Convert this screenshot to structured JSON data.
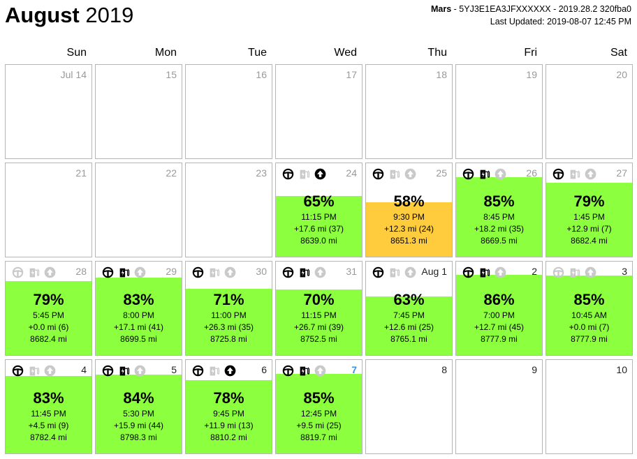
{
  "header": {
    "month": "August",
    "year": "2019",
    "car_name": "Mars",
    "car_info": " - 5YJ3E1EA3JFXXXXXX - 2019.28.2 320fba0",
    "last_updated": "Last Updated: 2019-08-07 12:45 PM"
  },
  "weekdays": [
    "Sun",
    "Mon",
    "Tue",
    "Wed",
    "Thu",
    "Fri",
    "Sat"
  ],
  "colors": {
    "green": "#8cff3f",
    "orange": "#ffcc3d",
    "border": "#b5b5b5",
    "date_grey": "#999999",
    "today": "#3d8fe0"
  },
  "weeks": [
    [
      {
        "date": "Jul 14"
      },
      {
        "date": "15"
      },
      {
        "date": "16"
      },
      {
        "date": "17"
      },
      {
        "date": "18"
      },
      {
        "date": "19"
      },
      {
        "date": "20"
      }
    ],
    [
      {
        "date": "21"
      },
      {
        "date": "22"
      },
      {
        "date": "23"
      },
      {
        "date": "24",
        "icons": {
          "drive": true,
          "charge": false,
          "update": true
        },
        "battery": "65%",
        "battery_level": 0.65,
        "color": "green",
        "time": "11:15 PM",
        "range": "+17.6 mi (37)",
        "odometer": "8639.0 mi"
      },
      {
        "date": "25",
        "icons": {
          "drive": true,
          "charge": false,
          "update": false
        },
        "battery": "58%",
        "battery_level": 0.58,
        "color": "orange",
        "time": "9:30 PM",
        "range": "+12.3 mi (24)",
        "odometer": "8651.3 mi"
      },
      {
        "date": "26",
        "icons": {
          "drive": true,
          "charge": true,
          "update": false
        },
        "battery": "85%",
        "battery_level": 0.85,
        "color": "green",
        "time": "8:45 PM",
        "range": "+18.2 mi (35)",
        "odometer": "8669.5 mi"
      },
      {
        "date": "27",
        "icons": {
          "drive": true,
          "charge": false,
          "update": false
        },
        "battery": "79%",
        "battery_level": 0.79,
        "color": "green",
        "time": "1:45 PM",
        "range": "+12.9 mi (7)",
        "odometer": "8682.4 mi"
      }
    ],
    [
      {
        "date": "28",
        "icons": {
          "drive": false,
          "charge": false,
          "update": false
        },
        "battery": "79%",
        "battery_level": 0.79,
        "color": "green",
        "time": "5:45 PM",
        "range": "+0.0 mi (6)",
        "odometer": "8682.4 mi"
      },
      {
        "date": "29",
        "icons": {
          "drive": true,
          "charge": true,
          "update": false
        },
        "battery": "83%",
        "battery_level": 0.83,
        "color": "green",
        "time": "8:00 PM",
        "range": "+17.1 mi (41)",
        "odometer": "8699.5 mi"
      },
      {
        "date": "30",
        "icons": {
          "drive": true,
          "charge": false,
          "update": false
        },
        "battery": "71%",
        "battery_level": 0.71,
        "color": "green",
        "time": "11:00 PM",
        "range": "+26.3 mi (35)",
        "odometer": "8725.8 mi"
      },
      {
        "date": "31",
        "icons": {
          "drive": true,
          "charge": true,
          "update": false
        },
        "battery": "70%",
        "battery_level": 0.7,
        "color": "green",
        "time": "11:15 PM",
        "range": "+26.7 mi (39)",
        "odometer": "8752.5 mi"
      },
      {
        "date": "Aug 1",
        "date_dark": true,
        "icons": {
          "drive": true,
          "charge": false,
          "update": false
        },
        "battery": "63%",
        "battery_level": 0.63,
        "color": "green",
        "time": "7:45 PM",
        "range": "+12.6 mi (25)",
        "odometer": "8765.1 mi"
      },
      {
        "date": "2",
        "date_dark": true,
        "icons": {
          "drive": true,
          "charge": true,
          "update": false
        },
        "battery": "86%",
        "battery_level": 0.86,
        "color": "green",
        "time": "7:00 PM",
        "range": "+12.7 mi (45)",
        "odometer": "8777.9 mi"
      },
      {
        "date": "3",
        "date_dark": true,
        "icons": {
          "drive": false,
          "charge": false,
          "update": false
        },
        "battery": "85%",
        "battery_level": 0.85,
        "color": "green",
        "time": "10:45 AM",
        "range": "+0.0 mi (7)",
        "odometer": "8777.9 mi"
      }
    ],
    [
      {
        "date": "4",
        "date_dark": true,
        "icons": {
          "drive": true,
          "charge": false,
          "update": false
        },
        "battery": "83%",
        "battery_level": 0.83,
        "color": "green",
        "time": "11:45 PM",
        "range": "+4.5 mi (9)",
        "odometer": "8782.4 mi"
      },
      {
        "date": "5",
        "date_dark": true,
        "icons": {
          "drive": true,
          "charge": true,
          "update": false
        },
        "battery": "84%",
        "battery_level": 0.84,
        "color": "green",
        "time": "5:30 PM",
        "range": "+15.9 mi (44)",
        "odometer": "8798.3 mi"
      },
      {
        "date": "6",
        "date_dark": true,
        "icons": {
          "drive": true,
          "charge": false,
          "update": true
        },
        "battery": "78%",
        "battery_level": 0.78,
        "color": "green",
        "time": "9:45 PM",
        "range": "+11.9 mi (13)",
        "odometer": "8810.2 mi"
      },
      {
        "date": "7",
        "today": true,
        "icons": {
          "drive": true,
          "charge": true,
          "update": false
        },
        "battery": "85%",
        "battery_level": 0.85,
        "color": "green",
        "time": "12:45 PM",
        "range": "+9.5 mi (25)",
        "odometer": "8819.7 mi"
      },
      {
        "date": "8",
        "date_dark": true
      },
      {
        "date": "9",
        "date_dark": true
      },
      {
        "date": "10",
        "date_dark": true
      }
    ]
  ]
}
